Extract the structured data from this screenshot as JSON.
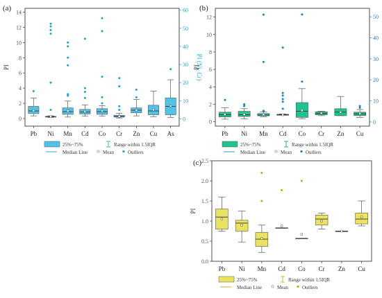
{
  "figure": {
    "type": "box-plot-panels"
  },
  "chart_data": [
    {
      "type": "box",
      "panel_label": "(a)",
      "categories": [
        "Pb",
        "Ni",
        "Mn",
        "Cd",
        "Co",
        "Cr",
        "Zn",
        "Cu",
        "As"
      ],
      "ylabel": "PI",
      "ylabel_right": "PI (Ni, Cr)",
      "ylim": [
        -1,
        14.5
      ],
      "yticks": [
        0,
        2,
        4,
        6,
        8,
        10,
        12,
        14
      ],
      "ylim_right": [
        -4,
        61
      ],
      "yticks_right": [
        0,
        10,
        20,
        30,
        40,
        50,
        60
      ],
      "right_axis_categories": [
        "Ni",
        "Cr"
      ],
      "box_color": "#4fc3e8",
      "accent_color": "#1aa6c9",
      "boxes": [
        {
          "cat": "Pb",
          "q1": 0.65,
          "median": 1.0,
          "q3": 1.6,
          "wl": 0.35,
          "wh": 2.7,
          "mean": 1.05,
          "outliers": [
            3.6
          ]
        },
        {
          "cat": "Ni",
          "q1": 1.0,
          "median": 1.2,
          "q3": 1.4,
          "wl": 0.8,
          "wh": 1.7,
          "mean": 1.25,
          "outliers": [
            5.0,
            20.0,
            47.0,
            49.0,
            51.0,
            52.5
          ]
        },
        {
          "cat": "Mn",
          "q1": 0.55,
          "median": 0.9,
          "q3": 1.4,
          "wl": 0.2,
          "wh": 2.3,
          "mean": 1.0,
          "outliers": [
            3.0,
            3.2,
            7.0,
            8.0,
            9.5,
            10.0
          ]
        },
        {
          "cat": "Cd",
          "q1": 0.6,
          "median": 0.85,
          "q3": 1.2,
          "wl": 0.3,
          "wh": 1.8,
          "mean": 0.95,
          "outliers": [
            2.7,
            3.5,
            4.0,
            10.5
          ]
        },
        {
          "cat": "Co",
          "q1": 0.55,
          "median": 0.9,
          "q3": 1.3,
          "wl": 0.3,
          "wh": 1.7,
          "mean": 1.0,
          "outliers": [
            2.0,
            2.8,
            5.5,
            11.5,
            13.2
          ]
        },
        {
          "cat": "Cr",
          "q1": 1.0,
          "median": 1.3,
          "q3": 2.0,
          "wl": 0.5,
          "wh": 3.0,
          "mean": 1.4,
          "outliers": [
            5.0,
            7.0,
            18.0,
            22.5
          ]
        },
        {
          "cat": "Zn",
          "q1": 0.75,
          "median": 1.1,
          "q3": 1.4,
          "wl": 0.35,
          "wh": 2.5,
          "mean": 1.1,
          "outliers": [
            2.8,
            3.8
          ]
        },
        {
          "cat": "Cu",
          "q1": 0.5,
          "median": 1.0,
          "q3": 1.75,
          "wl": 0.25,
          "wh": 3.6,
          "mean": 1.15,
          "outliers": []
        },
        {
          "cat": "As",
          "q1": 0.5,
          "median": 1.6,
          "q3": 2.7,
          "wl": 0.15,
          "wh": 5.1,
          "mean": 1.65,
          "outliers": [
            6.5
          ]
        }
      ],
      "legend": {
        "box": "25%~75%",
        "range": "Range within 1.5IQR",
        "median": "Median Line",
        "mean": "Mean",
        "outliers": "Outliers"
      }
    },
    {
      "type": "box",
      "panel_label": "(b)",
      "categories": [
        "Pb",
        "Ni",
        "Mn",
        "Cd",
        "Co",
        "Cr",
        "Zn",
        "Cu"
      ],
      "ylabel": "PI",
      "ylabel_right": "PI (Mn)",
      "ylim": [
        -0.5,
        13
      ],
      "yticks": [
        0,
        2,
        4,
        6,
        8,
        10,
        12
      ],
      "ylim_right": [
        -2,
        54
      ],
      "yticks_right": [
        0,
        10,
        20,
        30,
        40,
        50
      ],
      "right_axis_categories": [
        "Mn"
      ],
      "box_color": "#1ec48f",
      "accent_color": "#1a7fc9",
      "boxes": [
        {
          "cat": "Pb",
          "q1": 0.55,
          "median": 0.8,
          "q3": 1.1,
          "wl": 0.3,
          "wh": 1.6,
          "mean": 0.85,
          "outliers": [
            2.5
          ]
        },
        {
          "cat": "Ni",
          "q1": 0.6,
          "median": 0.8,
          "q3": 1.2,
          "wl": 0.35,
          "wh": 1.5,
          "mean": 0.85,
          "outliers": [
            1.8,
            2.0
          ]
        },
        {
          "cat": "Mn",
          "q1": 2.9,
          "median": 3.3,
          "q3": 4.0,
          "wl": 2.5,
          "wh": 4.7,
          "mean": 3.5,
          "outliers": [
            5.0,
            5.3,
            28.5,
            51.0
          ]
        },
        {
          "cat": "Cd",
          "q1": 0.75,
          "median": 0.8,
          "q3": 0.85,
          "wl": 0.75,
          "wh": 0.9,
          "mean": 0.8,
          "outliers": [
            1.5,
            2.3,
            2.6,
            3.0,
            3.3,
            8.5
          ]
        },
        {
          "cat": "Co",
          "q1": 0.5,
          "median": 1.2,
          "q3": 2.2,
          "wl": 0.35,
          "wh": 3.8,
          "mean": 1.3,
          "outliers": [
            4.6,
            12.3
          ]
        },
        {
          "cat": "Cr",
          "q1": 0.8,
          "median": 0.95,
          "q3": 1.15,
          "wl": 0.7,
          "wh": 1.2,
          "mean": 1.0,
          "outliers": []
        },
        {
          "cat": "Zn",
          "q1": 0.7,
          "median": 1.1,
          "q3": 1.5,
          "wl": 0.7,
          "wh": 2.9,
          "mean": 1.1,
          "outliers": []
        },
        {
          "cat": "Cu",
          "q1": 0.7,
          "median": 0.9,
          "q3": 1.1,
          "wl": 0.5,
          "wh": 1.4,
          "mean": 0.95,
          "outliers": [
            1.6,
            1.8
          ]
        }
      ],
      "legend": {
        "box": "25%~75%",
        "range": "Range within 1.5IQR",
        "median": "Median Line",
        "mean": "Mean",
        "outliers": "Outliers"
      }
    },
    {
      "type": "box",
      "panel_label": "(c)",
      "categories": [
        "Pb",
        "Ni",
        "Mn",
        "Cd",
        "Co",
        "Cr",
        "Zn",
        "Cu"
      ],
      "ylabel": "PI",
      "ylim": [
        0.0,
        2.5
      ],
      "yticks": [
        "0.0",
        "0.5",
        "1.0",
        "1.5",
        "2.0",
        "2.5"
      ],
      "box_color": "#ebe25e",
      "accent_color": "#c9a800",
      "boxes": [
        {
          "cat": "Pb",
          "q1": 0.8,
          "median": 1.1,
          "q3": 1.3,
          "wl": 0.75,
          "wh": 1.6,
          "mean": 1.05,
          "outliers": []
        },
        {
          "cat": "Ni",
          "q1": 0.75,
          "median": 0.95,
          "q3": 1.02,
          "wl": 0.48,
          "wh": 1.25,
          "mean": 0.9,
          "outliers": []
        },
        {
          "cat": "Mn",
          "q1": 0.37,
          "median": 0.55,
          "q3": 0.72,
          "wl": 0.22,
          "wh": 0.9,
          "mean": 0.57,
          "outliers": [
            1.5,
            2.2
          ]
        },
        {
          "cat": "Cd",
          "q1": 0.83,
          "median": 0.83,
          "q3": 0.83,
          "wl": 0.83,
          "wh": 0.83,
          "mean": 0.88,
          "outliers": [
            1.77
          ]
        },
        {
          "cat": "Co",
          "q1": 0.57,
          "median": 0.57,
          "q3": 0.57,
          "wl": 0.57,
          "wh": 0.57,
          "mean": 0.67,
          "outliers": [
            2.0
          ]
        },
        {
          "cat": "Cr",
          "q1": 0.9,
          "median": 1.05,
          "q3": 1.15,
          "wl": 0.8,
          "wh": 1.2,
          "mean": 1.0,
          "outliers": []
        },
        {
          "cat": "Zn",
          "q1": 0.75,
          "median": 0.75,
          "q3": 0.75,
          "wl": 0.75,
          "wh": 0.75,
          "mean": 0.75,
          "outliers": []
        },
        {
          "cat": "Cu",
          "q1": 0.93,
          "median": 1.05,
          "q3": 1.2,
          "wl": 0.88,
          "wh": 1.5,
          "mean": 1.1,
          "outliers": []
        }
      ],
      "legend": {
        "box": "25%~75%",
        "range": "Range within 1.5IQR",
        "median": "Median Line",
        "mean": "Mean",
        "outliers": "Outliers"
      }
    }
  ]
}
